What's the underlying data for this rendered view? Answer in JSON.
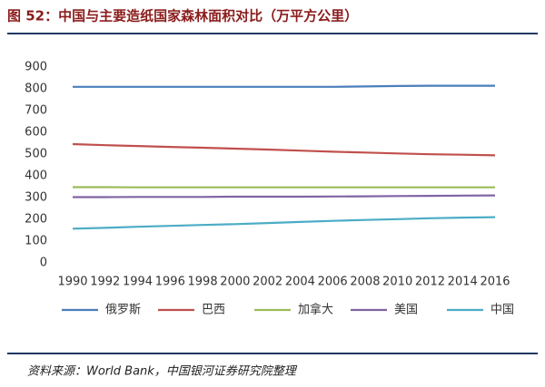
{
  "chart_data": {
    "type": "line",
    "title": "图 52：中国与主要造纸国家森林面积对比（万平方公里）",
    "source": "资料来源：World Bank，中国银河证券研究院整理",
    "x": [
      1990,
      1992,
      1994,
      1996,
      1998,
      2000,
      2002,
      2004,
      2006,
      2008,
      2010,
      2012,
      2014,
      2016
    ],
    "xlim": [
      1990,
      2016
    ],
    "xticks": [
      1990,
      1992,
      1994,
      1996,
      1998,
      2000,
      2002,
      2004,
      2006,
      2008,
      2010,
      2012,
      2014,
      2016
    ],
    "ylim": [
      0,
      900
    ],
    "yticks": [
      0,
      100,
      200,
      300,
      400,
      500,
      600,
      700,
      800,
      900
    ],
    "grid": false,
    "legend": "bottom",
    "series": [
      {
        "name": "俄罗斯",
        "color": "#4a7ebb",
        "values": [
          809,
          809,
          809,
          809,
          809,
          809,
          809,
          809,
          809,
          811,
          813,
          814,
          814,
          814
        ]
      },
      {
        "name": "巴西",
        "color": "#c0504d",
        "values": [
          546,
          541,
          537,
          533,
          529,
          525,
          521,
          516,
          511,
          507,
          503,
          499,
          497,
          494
        ]
      },
      {
        "name": "加拿大",
        "color": "#9bbb59",
        "values": [
          348,
          348,
          347,
          347,
          347,
          347,
          347,
          347,
          347,
          347,
          347,
          347,
          347,
          347
        ]
      },
      {
        "name": "美国",
        "color": "#8064a2",
        "values": [
          302,
          302,
          303,
          303,
          303,
          304,
          304,
          304,
          305,
          306,
          307,
          308,
          309,
          310
        ]
      },
      {
        "name": "中国",
        "color": "#4bacc6",
        "values": [
          157,
          161,
          166,
          170,
          174,
          178,
          183,
          188,
          193,
          197,
          201,
          205,
          208,
          210
        ]
      }
    ]
  }
}
